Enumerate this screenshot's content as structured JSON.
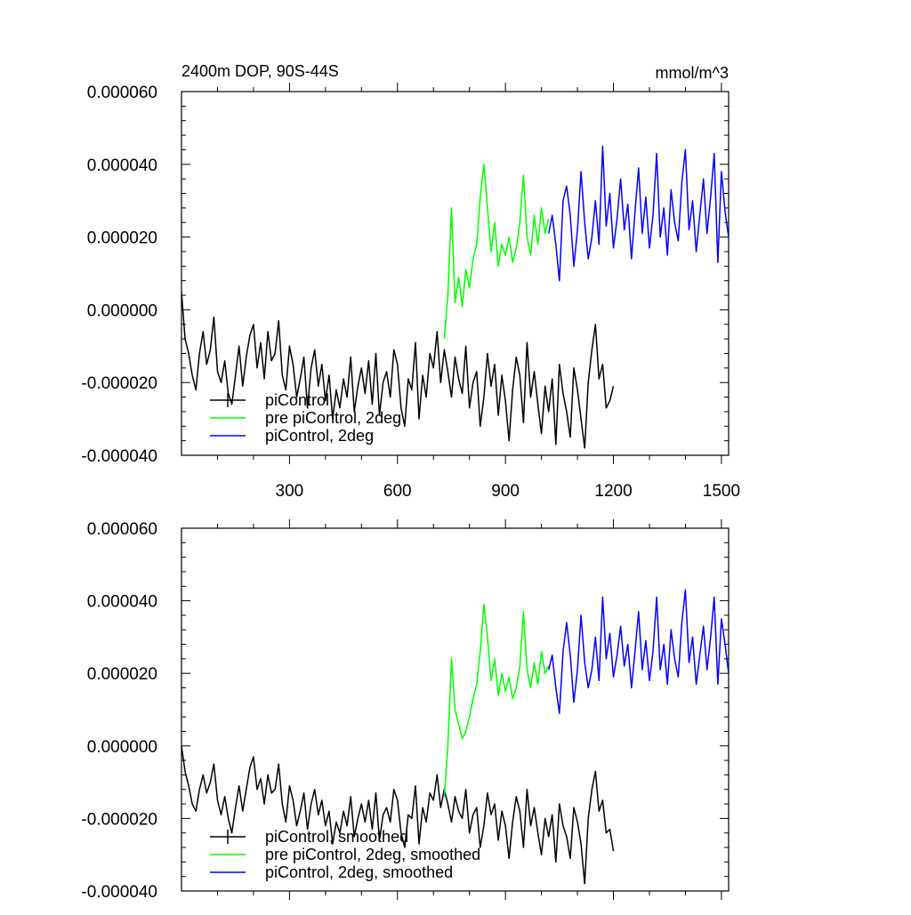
{
  "chart_data": [
    {
      "type": "line",
      "title": "2400m DOP, 90S-44S",
      "units": "mmol/m^3",
      "xlim": [
        0,
        1520
      ],
      "ylim": [
        -4e-05,
        6e-05
      ],
      "xticks": [
        300,
        600,
        900,
        1200,
        1500
      ],
      "xtick_labels": [
        "300",
        "600",
        "900",
        "1200",
        "1500"
      ],
      "yticks": [
        -4e-05,
        -2e-05,
        0,
        2e-05,
        4e-05,
        6e-05
      ],
      "ytick_labels": [
        "-0.000040",
        "-0.000020",
        "0.000000",
        "0.000020",
        "0.000040",
        "0.000060"
      ],
      "legend_position": "bottom-left",
      "series": [
        {
          "name": "piControl",
          "color": "#000000",
          "x": [
            0,
            10,
            20,
            30,
            40,
            50,
            60,
            70,
            80,
            90,
            100,
            110,
            120,
            130,
            140,
            150,
            160,
            170,
            180,
            190,
            200,
            210,
            220,
            230,
            240,
            250,
            260,
            270,
            280,
            290,
            300,
            310,
            320,
            330,
            340,
            350,
            360,
            370,
            380,
            390,
            400,
            410,
            420,
            430,
            440,
            450,
            460,
            470,
            480,
            490,
            500,
            510,
            520,
            530,
            540,
            550,
            560,
            570,
            580,
            590,
            600,
            610,
            620,
            630,
            640,
            650,
            660,
            670,
            680,
            690,
            700,
            710,
            720,
            730,
            740,
            750,
            760,
            770,
            780,
            790,
            800,
            810,
            820,
            830,
            840,
            850,
            860,
            870,
            880,
            890,
            900,
            910,
            920,
            930,
            940,
            950,
            960,
            970,
            980,
            990,
            1000,
            1010,
            1020,
            1030,
            1040,
            1050,
            1060,
            1070,
            1080,
            1090,
            1100,
            1110,
            1120,
            1130,
            1140,
            1150,
            1160,
            1170,
            1180,
            1190,
            1200
          ],
          "y": [
            5e-06,
            -8e-06,
            -1.2e-05,
            -1.8e-05,
            -2.2e-05,
            -1.2e-05,
            -6e-06,
            -1.5e-05,
            -1.1e-05,
            -2e-06,
            -1.7e-05,
            -2e-05,
            -1.4e-05,
            -2.3e-05,
            -2.6e-05,
            -1.8e-05,
            -1e-05,
            -2.1e-05,
            -1.3e-05,
            -7e-06,
            -4e-06,
            -1.6e-05,
            -9e-06,
            -1.9e-05,
            -6e-06,
            -1.4e-05,
            -1.2e-05,
            -3e-06,
            -1.8e-05,
            -2.2e-05,
            -1e-05,
            -1.5e-05,
            -2.4e-05,
            -1.9e-05,
            -1.3e-05,
            -2.7e-05,
            -1.6e-05,
            -1.1e-05,
            -2.1e-05,
            -1.5e-05,
            -2.5e-05,
            -1.8e-05,
            -3e-05,
            -2.2e-05,
            -2.7e-05,
            -1.9e-05,
            -2.4e-05,
            -1.3e-05,
            -2.8e-05,
            -2.1e-05,
            -1.6e-05,
            -2.3e-05,
            -1.4e-05,
            -2.6e-05,
            -1.2e-05,
            -2.9e-05,
            -2e-05,
            -1.7e-05,
            -2.4e-05,
            -1.1e-05,
            -1.5e-05,
            -2.7e-05,
            -3.2e-05,
            -1.9e-05,
            -2.2e-05,
            -9e-06,
            -3e-05,
            -1.8e-05,
            -2.4e-05,
            -1.2e-05,
            -1.6e-05,
            -6e-06,
            -2e-05,
            -1.1e-05,
            -1.7e-05,
            -2.4e-05,
            -1.3e-05,
            -1.9e-05,
            -2.3e-05,
            -1e-05,
            -2.7e-05,
            -2e-05,
            -1.7e-05,
            -3.2e-05,
            -2.4e-05,
            -1.2e-05,
            -2.1e-05,
            -1.5e-05,
            -2.9e-05,
            -1.8e-05,
            -2.5e-05,
            -3.6e-05,
            -2.2e-05,
            -1.3e-05,
            -1.8e-05,
            -3.1e-05,
            -9e-06,
            -2.4e-05,
            -1.7e-05,
            -2.6e-05,
            -3.4e-05,
            -2.1e-05,
            -2.8e-05,
            -1.9e-05,
            -3.7e-05,
            -1.5e-05,
            -2.3e-05,
            -2.8e-05,
            -3.5e-05,
            -1.6e-05,
            -2.2e-05,
            -3e-05,
            -3.8e-05,
            -2e-05,
            -1.1e-05,
            -4e-06,
            -1.9e-05,
            -1.5e-05,
            -2.7e-05,
            -2.5e-05,
            -2.1e-05
          ]
        },
        {
          "name": "pre piControl, 2deg",
          "color": "#00ff00",
          "x": [
            730,
            740,
            750,
            760,
            770,
            780,
            790,
            800,
            810,
            820,
            830,
            840,
            850,
            860,
            870,
            880,
            890,
            900,
            910,
            920,
            930,
            940,
            950,
            960,
            970,
            980,
            990,
            1000,
            1010,
            1020
          ],
          "y": [
            -8e-06,
            4e-06,
            2.8e-05,
            2e-06,
            9e-06,
            1e-06,
            1.1e-05,
            6e-06,
            1.4e-05,
            1.8e-05,
            3.1e-05,
            4e-05,
            2.8e-05,
            1.6e-05,
            2.4e-05,
            1.2e-05,
            1.8e-05,
            1.5e-05,
            2e-05,
            1.3e-05,
            1.7e-05,
            2.4e-05,
            3.7e-05,
            2e-05,
            1.5e-05,
            2.6e-05,
            1.8e-05,
            2.8e-05,
            2.1e-05,
            2.5e-05
          ]
        },
        {
          "name": "piControl, 2deg",
          "color": "#0000ff",
          "x": [
            1020,
            1030,
            1040,
            1050,
            1060,
            1070,
            1080,
            1090,
            1100,
            1110,
            1120,
            1130,
            1140,
            1150,
            1160,
            1170,
            1180,
            1190,
            1200,
            1210,
            1220,
            1230,
            1240,
            1250,
            1260,
            1270,
            1280,
            1290,
            1300,
            1310,
            1320,
            1330,
            1340,
            1350,
            1360,
            1370,
            1380,
            1390,
            1400,
            1410,
            1420,
            1430,
            1440,
            1450,
            1460,
            1470,
            1480,
            1490,
            1500,
            1510,
            1520
          ],
          "y": [
            2.1e-05,
            2.6e-05,
            1.8e-05,
            8e-06,
            3e-05,
            3.4e-05,
            2.6e-05,
            1.2e-05,
            2.2e-05,
            3.8e-05,
            2.4e-05,
            1.4e-05,
            2e-05,
            3e-05,
            1.8e-05,
            4.5e-05,
            2.3e-05,
            3.2e-05,
            1.7e-05,
            2.5e-05,
            3.6e-05,
            2.2e-05,
            2.9e-05,
            1.4e-05,
            2.7e-05,
            3.9e-05,
            2.1e-05,
            3.1e-05,
            1.7e-05,
            2.6e-05,
            4.3e-05,
            2e-05,
            2.8e-05,
            1.5e-05,
            3.3e-05,
            2.4e-05,
            1.9e-05,
            3.5e-05,
            4.4e-05,
            2.2e-05,
            3e-05,
            1.6e-05,
            2.6e-05,
            3.6e-05,
            2.1e-05,
            3.1e-05,
            4.3e-05,
            1.3e-05,
            3.8e-05,
            2.7e-05,
            2e-05
          ]
        }
      ]
    },
    {
      "type": "line",
      "title": "",
      "units": "",
      "xlim": [
        0,
        1520
      ],
      "ylim": [
        -4e-05,
        6e-05
      ],
      "xticks": [
        300,
        600,
        900,
        1200,
        1500
      ],
      "xtick_labels": [],
      "yticks": [
        -4e-05,
        -2e-05,
        0,
        2e-05,
        4e-05,
        6e-05
      ],
      "ytick_labels": [
        "-0.000040",
        "-0.000020",
        "0.000000",
        "0.000020",
        "0.000040",
        "0.000060"
      ],
      "legend_position": "bottom-left",
      "series": [
        {
          "name": "piControl, smoothed",
          "color": "#000000",
          "x": [
            0,
            10,
            20,
            30,
            40,
            50,
            60,
            70,
            80,
            90,
            100,
            110,
            120,
            130,
            140,
            150,
            160,
            170,
            180,
            190,
            200,
            210,
            220,
            230,
            240,
            250,
            260,
            270,
            280,
            290,
            300,
            310,
            320,
            330,
            340,
            350,
            360,
            370,
            380,
            390,
            400,
            410,
            420,
            430,
            440,
            450,
            460,
            470,
            480,
            490,
            500,
            510,
            520,
            530,
            540,
            550,
            560,
            570,
            580,
            590,
            600,
            610,
            620,
            630,
            640,
            650,
            660,
            670,
            680,
            690,
            700,
            710,
            720,
            730,
            740,
            750,
            760,
            770,
            780,
            790,
            800,
            810,
            820,
            830,
            840,
            850,
            860,
            870,
            880,
            890,
            900,
            910,
            920,
            930,
            940,
            950,
            960,
            970,
            980,
            990,
            1000,
            1010,
            1020,
            1030,
            1040,
            1050,
            1060,
            1070,
            1080,
            1090,
            1100,
            1110,
            1120,
            1130,
            1140,
            1150,
            1160,
            1170,
            1180,
            1190,
            1200
          ],
          "y": [
            0.0,
            -7e-06,
            -1.1e-05,
            -1.6e-05,
            -1.8e-05,
            -1.2e-05,
            -8e-06,
            -1.3e-05,
            -1e-05,
            -5e-06,
            -1.5e-05,
            -1.9e-05,
            -1.4e-05,
            -2e-05,
            -2.4e-05,
            -1.7e-05,
            -1.1e-05,
            -1.8e-05,
            -1.2e-05,
            -6e-06,
            -3e-06,
            -1.2e-05,
            -9e-06,
            -1.6e-05,
            -8e-06,
            -1.3e-05,
            -1.2e-05,
            -5e-06,
            -1.6e-05,
            -2.1e-05,
            -1.1e-05,
            -1.5e-05,
            -2.2e-05,
            -1.8e-05,
            -1.3e-05,
            -2.3e-05,
            -1.6e-05,
            -1.2e-05,
            -1.9e-05,
            -1.5e-05,
            -2.2e-05,
            -1.8e-05,
            -2.7e-05,
            -2.1e-05,
            -2.4e-05,
            -1.8e-05,
            -2.2e-05,
            -1.4e-05,
            -2.5e-05,
            -2e-05,
            -1.6e-05,
            -2.1e-05,
            -1.5e-05,
            -2.3e-05,
            -1.3e-05,
            -2.6e-05,
            -1.9e-05,
            -1.7e-05,
            -2.1e-05,
            -1.2e-05,
            -1.5e-05,
            -2.4e-05,
            -2.8e-05,
            -1.9e-05,
            -2e-05,
            -1.1e-05,
            -2.7e-05,
            -1.7e-05,
            -2.1e-05,
            -1.3e-05,
            -1.5e-05,
            -8e-06,
            -1.7e-05,
            -1.2e-05,
            -1.6e-05,
            -2.1e-05,
            -1.4e-05,
            -1.8e-05,
            -2e-05,
            -1.2e-05,
            -2.4e-05,
            -1.9e-05,
            -1.7e-05,
            -2.8e-05,
            -2.2e-05,
            -1.3e-05,
            -1.9e-05,
            -1.6e-05,
            -2.6e-05,
            -1.8e-05,
            -2.2e-05,
            -3.1e-05,
            -2.1e-05,
            -1.4e-05,
            -1.8e-05,
            -2.8e-05,
            -1.2e-05,
            -2.2e-05,
            -1.7e-05,
            -2.4e-05,
            -3e-05,
            -2e-05,
            -2.5e-05,
            -1.9e-05,
            -3.2e-05,
            -1.6e-05,
            -2.2e-05,
            -2.5e-05,
            -3.1e-05,
            -1.7e-05,
            -2.1e-05,
            -2.7e-05,
            -3.8e-05,
            -2e-05,
            -1.2e-05,
            -7e-06,
            -1.8e-05,
            -1.5e-05,
            -2.4e-05,
            -2.3e-05,
            -2.9e-05
          ]
        },
        {
          "name": "pre piControl, 2deg, smoothed",
          "color": "#00ff00",
          "x": [
            730,
            740,
            750,
            760,
            770,
            780,
            790,
            800,
            810,
            820,
            830,
            840,
            850,
            860,
            870,
            880,
            890,
            900,
            910,
            920,
            930,
            940,
            950,
            960,
            970,
            980,
            990,
            1000,
            1010,
            1020
          ],
          "y": [
            -1.4e-05,
            0.0,
            2.4e-05,
            1e-05,
            6e-06,
            2e-06,
            4e-06,
            8e-06,
            1.3e-05,
            1.7e-05,
            2.6e-05,
            3.9e-05,
            3e-05,
            1.8e-05,
            2.4e-05,
            1.4e-05,
            2e-05,
            1.5e-05,
            1.9e-05,
            1.3e-05,
            1.6e-05,
            2.2e-05,
            3.7e-05,
            2.1e-05,
            1.6e-05,
            2.3e-05,
            1.7e-05,
            2.6e-05,
            2e-05,
            2.2e-05
          ]
        },
        {
          "name": "piControl, 2deg, smoothed",
          "color": "#0000ff",
          "x": [
            1020,
            1030,
            1040,
            1050,
            1060,
            1070,
            1080,
            1090,
            1100,
            1110,
            1120,
            1130,
            1140,
            1150,
            1160,
            1170,
            1180,
            1190,
            1200,
            1210,
            1220,
            1230,
            1240,
            1250,
            1260,
            1270,
            1280,
            1290,
            1300,
            1310,
            1320,
            1330,
            1340,
            1350,
            1360,
            1370,
            1380,
            1390,
            1400,
            1410,
            1420,
            1430,
            1440,
            1450,
            1460,
            1470,
            1480,
            1490,
            1500,
            1510,
            1520
          ],
          "y": [
            2.1e-05,
            2.5e-05,
            1.6e-05,
            9e-06,
            2.6e-05,
            3.4e-05,
            2.5e-05,
            1.2e-05,
            2.1e-05,
            3.6e-05,
            2.3e-05,
            1.6e-05,
            2.1e-05,
            3e-05,
            1.8e-05,
            4.1e-05,
            2.4e-05,
            3.1e-05,
            1.9e-05,
            2.5e-05,
            3.3e-05,
            2.2e-05,
            2.8e-05,
            1.6e-05,
            2.6e-05,
            3.7e-05,
            2.1e-05,
            2.9e-05,
            1.8e-05,
            2.6e-05,
            4.1e-05,
            2.1e-05,
            2.8e-05,
            1.7e-05,
            3.2e-05,
            2.4e-05,
            1.9e-05,
            3.4e-05,
            4.3e-05,
            2.3e-05,
            3e-05,
            1.7e-05,
            2.5e-05,
            3.3e-05,
            2.1e-05,
            3e-05,
            4.1e-05,
            1.7e-05,
            3.5e-05,
            2.8e-05,
            2e-05
          ]
        }
      ]
    }
  ]
}
